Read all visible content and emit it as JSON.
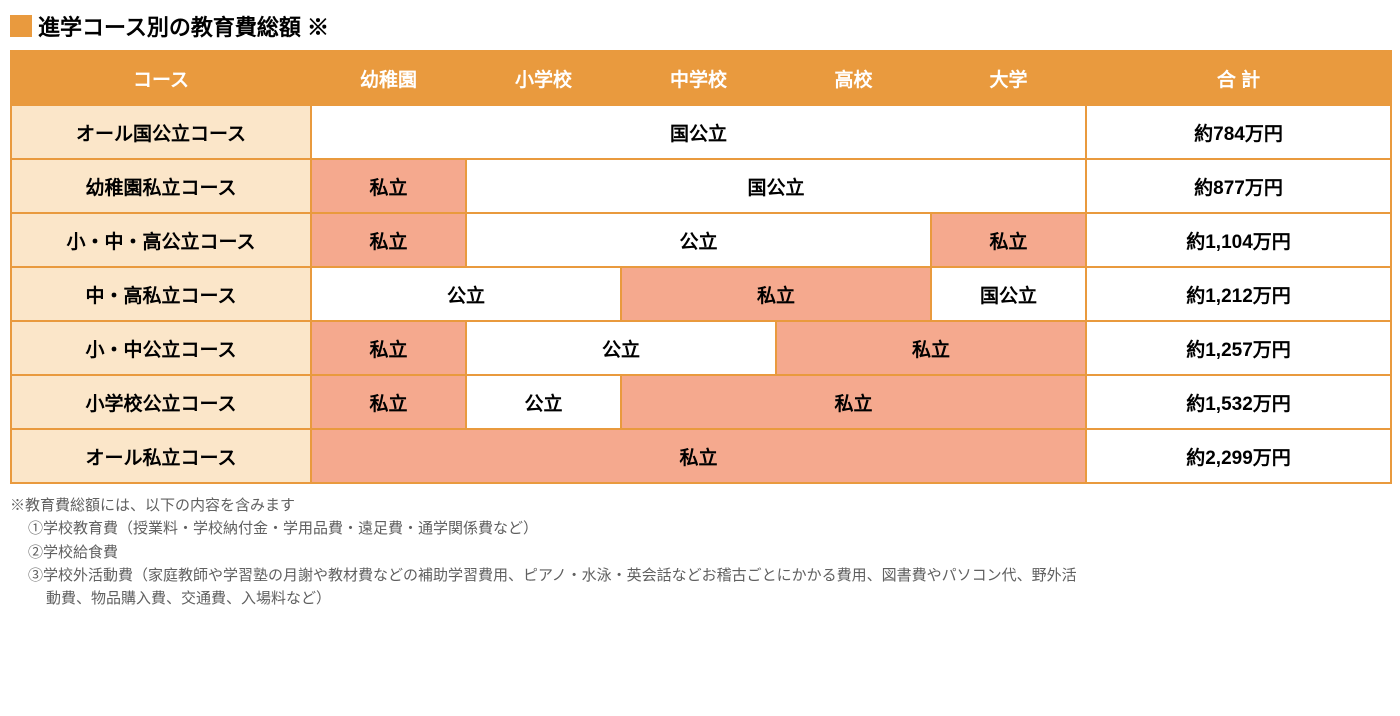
{
  "colors": {
    "accent_orange": "#e99a3e",
    "header_bg": "#e99a3e",
    "header_text": "#ffffff",
    "border": "#e99a3e",
    "course_label_bg": "#fbe6c9",
    "private_bg": "#f5a98e",
    "public_bg": "#ffffff",
    "total_bg": "#ffffff",
    "note_text": "#606060",
    "title_text": "#000000"
  },
  "title": "進学コース別の教育費総額 ※",
  "headers": {
    "course": "コース",
    "stages": [
      "幼稚園",
      "小学校",
      "中学校",
      "高校",
      "大学"
    ],
    "total": "合 計"
  },
  "cell_text": {
    "public_national": "国公立",
    "public": "公立",
    "private": "私立"
  },
  "rows": [
    {
      "course": "オール国公立コース",
      "cells": [
        {
          "key": "public_national",
          "span": 5
        }
      ],
      "total": "約784万円"
    },
    {
      "course": "幼稚園私立コース",
      "cells": [
        {
          "key": "private",
          "span": 1
        },
        {
          "key": "public_national",
          "span": 4
        }
      ],
      "total": "約877万円"
    },
    {
      "course": "小・中・高公立コース",
      "cells": [
        {
          "key": "private",
          "span": 1
        },
        {
          "key": "public",
          "span": 3
        },
        {
          "key": "private",
          "span": 1
        }
      ],
      "total": "約1,104万円"
    },
    {
      "course": "中・高私立コース",
      "cells": [
        {
          "key": "public",
          "span": 2
        },
        {
          "key": "private",
          "span": 2
        },
        {
          "key": "public_national",
          "span": 1
        }
      ],
      "total": "約1,212万円"
    },
    {
      "course": "小・中公立コース",
      "cells": [
        {
          "key": "private",
          "span": 1
        },
        {
          "key": "public",
          "span": 2
        },
        {
          "key": "private",
          "span": 2
        }
      ],
      "total": "約1,257万円"
    },
    {
      "course": "小学校公立コース",
      "cells": [
        {
          "key": "private",
          "span": 1
        },
        {
          "key": "public",
          "span": 1
        },
        {
          "key": "private",
          "span": 3
        }
      ],
      "total": "約1,532万円"
    },
    {
      "course": "オール私立コース",
      "cells": [
        {
          "key": "private",
          "span": 5
        }
      ],
      "total": "約2,299万円"
    }
  ],
  "notes": {
    "lead": "※教育費総額には、以下の内容を含みます",
    "items": [
      "①学校教育費（授業料・学校納付金・学用品費・遠足費・通学関係費など）",
      "②学校給食費",
      "③学校外活動費（家庭教師や学習塾の月謝や教材費などの補助学習費用、ピアノ・水泳・英会話などお稽古ごとにかかる費用、図書費やパソコン代、野外活",
      "動費、物品購入費、交通費、入場料など）"
    ]
  }
}
